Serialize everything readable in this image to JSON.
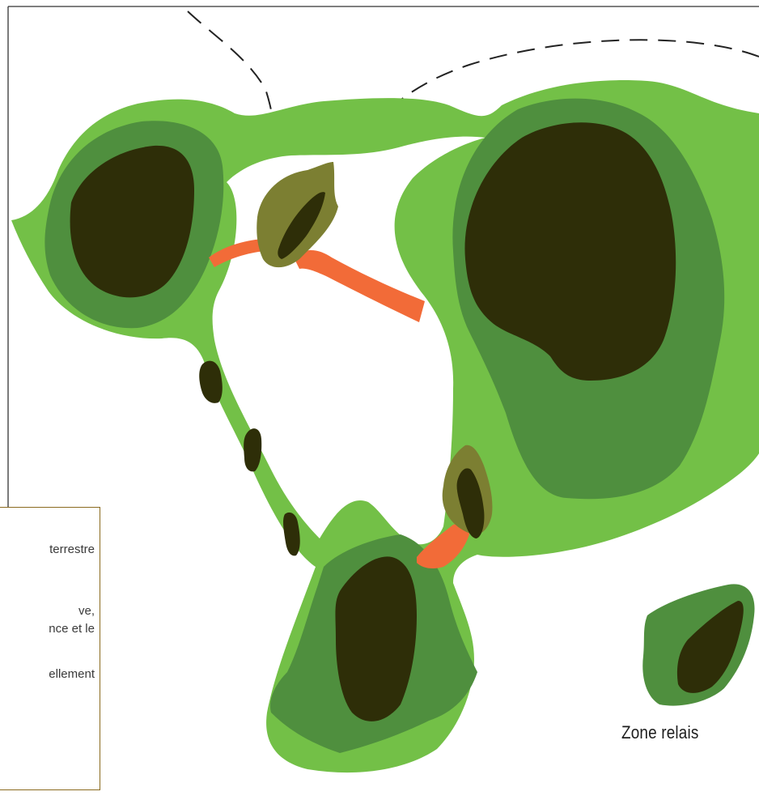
{
  "colors": {
    "outer_green": "#73c047",
    "mid_green": "#4f8f3e",
    "core": "#2e2e08",
    "relay_olive": "#7c7f32",
    "corridor": "#f26b38",
    "frame": "#333333",
    "legend_border": "#8a6b1f"
  },
  "legend": {
    "lines": [
      "terrestre",
      "ve,",
      "nce et le",
      "ellement"
    ]
  },
  "labels": {
    "zone_relais": "Zone relais"
  }
}
